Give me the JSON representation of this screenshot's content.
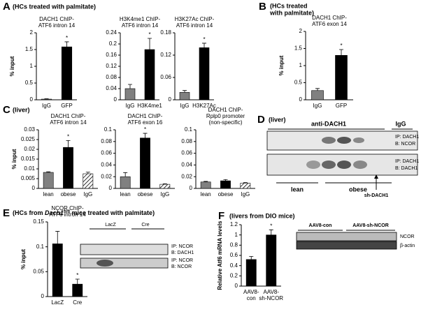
{
  "panels": [
    {
      "letter": "A",
      "heading": "(HCs treated with palmitate)"
    },
    {
      "letter": "B",
      "heading": [
        "(HCs treated",
        "with palmitate)"
      ]
    },
    {
      "letter": "C",
      "heading": "(liver)"
    },
    {
      "letter": "D",
      "heading": "(liver)"
    },
    {
      "letter": "E",
      "heading": [
        "(HCs from ",
        "Dach1",
        "fl/fl",
        " mice treated with palmitate)"
      ]
    },
    {
      "letter": "F",
      "heading": "(livers from DIO mice)"
    }
  ],
  "chart_data": [
    {
      "type": "bar",
      "title": [
        "DACH1 ChIP-",
        "ATF6 intron 14"
      ],
      "ylabel": "% input",
      "categories": [
        "IgG",
        "GFP"
      ],
      "values": [
        0.02,
        1.58
      ],
      "errors": [
        0.01,
        0.15
      ],
      "colors": [
        "#808080",
        "#000000"
      ],
      "ylim": [
        0,
        2
      ],
      "yticks": [
        0,
        0.5,
        1,
        1.5,
        2
      ],
      "annotations": [
        {
          "x": "GFP",
          "text": "*"
        }
      ]
    },
    {
      "type": "bar",
      "title": [
        "H3K4me1 ChIP-",
        "ATF6 intron 14"
      ],
      "categories": [
        "IgG",
        "H3K4me1"
      ],
      "values": [
        0.04,
        0.18
      ],
      "errors": [
        0.015,
        0.04
      ],
      "colors": [
        "#808080",
        "#000000"
      ],
      "ylim": [
        0,
        0.24
      ],
      "yticks": [
        0,
        0.04,
        0.08,
        0.12,
        0.16,
        0.2,
        0.24
      ],
      "annotations": [
        {
          "x": "H3K4me1",
          "text": "*"
        }
      ]
    },
    {
      "type": "bar",
      "title": [
        "H3K27Ac ChIP-",
        "ATF6 intron 14"
      ],
      "categories": [
        "IgG",
        "H3K27Ac"
      ],
      "values": [
        0.02,
        0.14
      ],
      "errors": [
        0.005,
        0.012
      ],
      "colors": [
        "#808080",
        "#000000"
      ],
      "ylim": [
        0,
        0.18
      ],
      "yticks": [
        0,
        0.06,
        0.12,
        0.18
      ],
      "annotations": [
        {
          "x": "H3K27Ac",
          "text": "*"
        }
      ]
    },
    {
      "type": "bar",
      "title": [
        "DACH1 ChIP-",
        "ATF6 exon 14"
      ],
      "ylabel": "% input",
      "categories": [
        "IgG",
        "GFP"
      ],
      "values": [
        0.27,
        1.3
      ],
      "errors": [
        0.06,
        0.17
      ],
      "colors": [
        "#808080",
        "#000000"
      ],
      "ylim": [
        0,
        2
      ],
      "yticks": [
        0,
        0.5,
        1,
        1.5,
        2
      ],
      "annotations": [
        {
          "x": "GFP",
          "text": "*"
        }
      ]
    },
    {
      "type": "bar",
      "title": [
        "DACH1 ChIP-",
        "ATF6 intron 14"
      ],
      "ylabel": "% input",
      "categories": [
        "lean",
        "obese",
        "IgG"
      ],
      "values": [
        0.0082,
        0.021,
        0.0075
      ],
      "errors": [
        0.0003,
        0.0035,
        0.0008
      ],
      "colors": [
        "#808080",
        "#000000",
        "#ffffff"
      ],
      "hatched": [
        false,
        false,
        true
      ],
      "ylim": [
        0,
        0.03
      ],
      "yticks": [
        0,
        0.005,
        0.01,
        0.015,
        0.02,
        0.025,
        0.03
      ],
      "annotations": [
        {
          "x": "obese",
          "text": "*"
        }
      ]
    },
    {
      "type": "bar",
      "title": [
        "DACH1 ChIP-",
        "ATF6 exon 16"
      ],
      "categories": [
        "lean",
        "obese",
        "IgG"
      ],
      "values": [
        0.02,
        0.086,
        0.007
      ],
      "errors": [
        0.007,
        0.008,
        0.001
      ],
      "colors": [
        "#808080",
        "#000000",
        "#ffffff"
      ],
      "hatched": [
        false,
        false,
        true
      ],
      "ylim": [
        0,
        0.1
      ],
      "yticks": [
        0,
        0.02,
        0.04,
        0.06,
        0.08,
        0.1
      ],
      "annotations": [
        {
          "x": "obese",
          "text": "*"
        }
      ]
    },
    {
      "type": "bar",
      "title": [
        "DACH1 ChIP-",
        "Rplp0 promoter",
        "(non-specific)"
      ],
      "categories": [
        "lean",
        "obese",
        "IgG"
      ],
      "values": [
        0.011,
        0.013,
        0.009
      ],
      "errors": [
        0.001,
        0.002,
        0.001
      ],
      "colors": [
        "#808080",
        "#000000",
        "#ffffff"
      ],
      "hatched": [
        false,
        false,
        true
      ],
      "ylim": [
        0,
        0.1
      ],
      "yticks": [
        0,
        0.02,
        0.04,
        0.06,
        0.08,
        0.1
      ]
    },
    {
      "type": "bar",
      "title": [
        "NCOR ChIP-",
        "ATF6 intron 14"
      ],
      "ylabel": "% input",
      "categories": [
        "LacZ",
        "Cre"
      ],
      "values": [
        0.106,
        0.025
      ],
      "errors": [
        0.025,
        0.01
      ],
      "colors": [
        "#000000",
        "#000000"
      ],
      "ylim": [
        0,
        0.15
      ],
      "yticks": [
        0,
        0.05,
        0.1,
        0.15
      ],
      "annotations": [
        {
          "x": "Cre",
          "text": "*"
        }
      ]
    },
    {
      "type": "bar",
      "ylabel": "Relative Atf6 mRNA levels",
      "categories": [
        [
          "AAV8-",
          "con"
        ],
        [
          "AAV8-",
          "sh-NCOR"
        ]
      ],
      "values": [
        0.52,
        1.0
      ],
      "errors": [
        0.06,
        0.1
      ],
      "colors": [
        "#000000",
        "#000000"
      ],
      "ylim": [
        0,
        1.2
      ],
      "yticks": [
        0,
        0.2,
        0.4,
        0.6,
        0.8,
        1,
        1.2
      ],
      "annotations": [
        {
          "x": "AAV8-sh-NCOR",
          "text": "*"
        }
      ]
    }
  ],
  "blots": {
    "D": {
      "header": "anti-DACH1",
      "igg": "IgG",
      "rows": [
        [
          "IP: DACH1",
          "B: NCOR"
        ],
        [
          "IP: DACH1",
          "B: DACH1"
        ]
      ],
      "groups": [
        "lean",
        "obese"
      ],
      "arrow": "sh-DACH1"
    },
    "E": {
      "groups": [
        "LacZ",
        "Cre"
      ],
      "rows": [
        [
          "IP: NCOR",
          "B: DACH1"
        ],
        [
          "IP: NCOR",
          "B: NCOR"
        ]
      ]
    },
    "F": {
      "groups": [
        "AAV8-con",
        "AAV8-sh-NCOR"
      ],
      "rows": [
        "NCOR",
        "β-actin"
      ]
    }
  }
}
